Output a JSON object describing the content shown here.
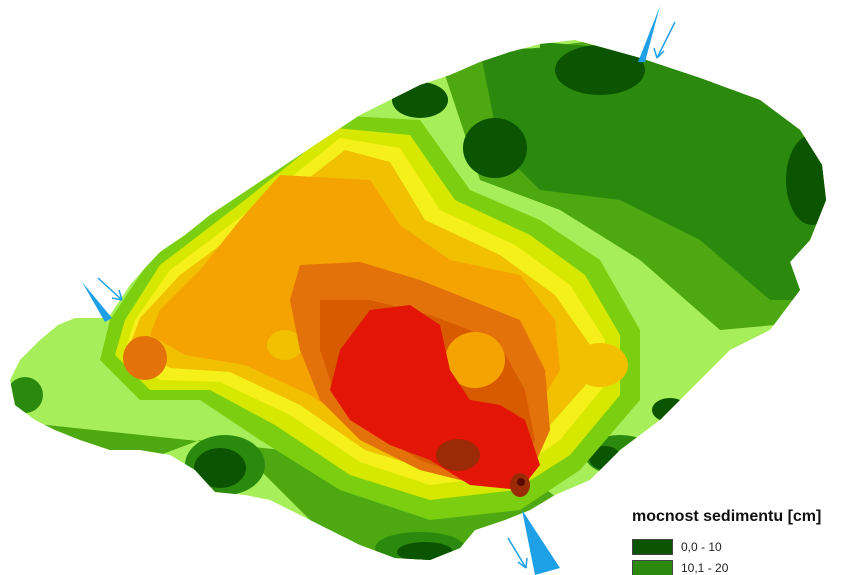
{
  "legend": {
    "title": "mocnost sedimentu [cm]",
    "classes": [
      {
        "label": "0,0 - 10",
        "color": "#0b5400"
      },
      {
        "label": "10,1 - 20",
        "color": "#2b8a0e"
      }
    ]
  },
  "colors": {
    "background": "#ffffff",
    "class_ramp": [
      "#0b5400",
      "#2b8a0e",
      "#4ea811",
      "#7ccf10",
      "#a6ee5a",
      "#d7e800",
      "#f5f01a",
      "#f1c000",
      "#f5a300",
      "#e3720a",
      "#d95b00",
      "#e31507",
      "#9a2b06",
      "#5a0a04"
    ],
    "inflow_marker": "#1ea0e6"
  },
  "icons": {
    "inflow": "inflow-arrow-icon"
  }
}
